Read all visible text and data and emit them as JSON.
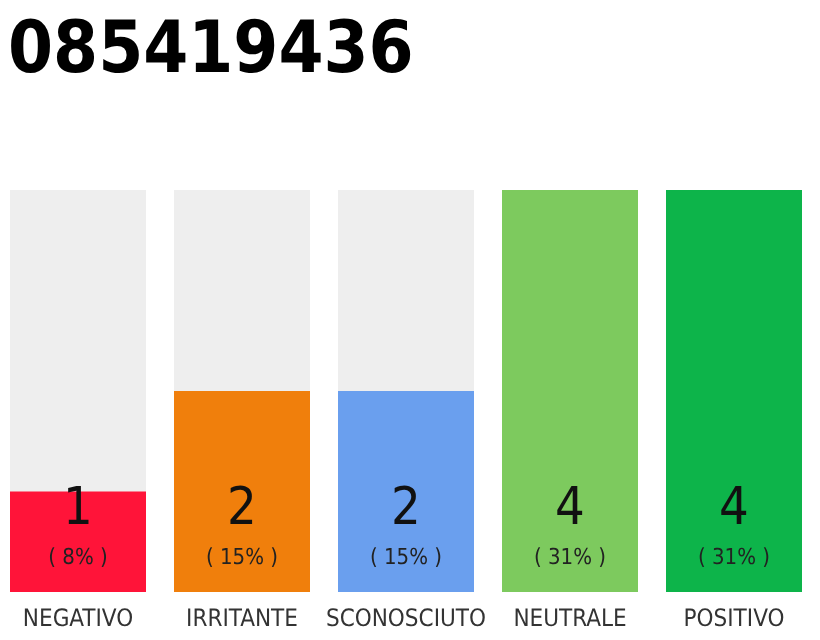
{
  "chart_data": {
    "type": "bar",
    "title": "085419436",
    "categories": [
      "NEGATIVO",
      "IRRITANTE",
      "SCONOSCIUTO",
      "NEUTRALE",
      "POSITIVO"
    ],
    "values": [
      1,
      2,
      2,
      4,
      4
    ],
    "colors": [
      "#ff1439",
      "#f07f0c",
      "#6a9fee",
      "#7dca5e",
      "#0db44a"
    ],
    "ylim": [
      0,
      4
    ],
    "data_labels": true,
    "tick_labels": "x",
    "annotations": [
      "( 8% )",
      "( 15% )",
      "( 15% )",
      "( 31% )",
      "( 31% )"
    ]
  }
}
